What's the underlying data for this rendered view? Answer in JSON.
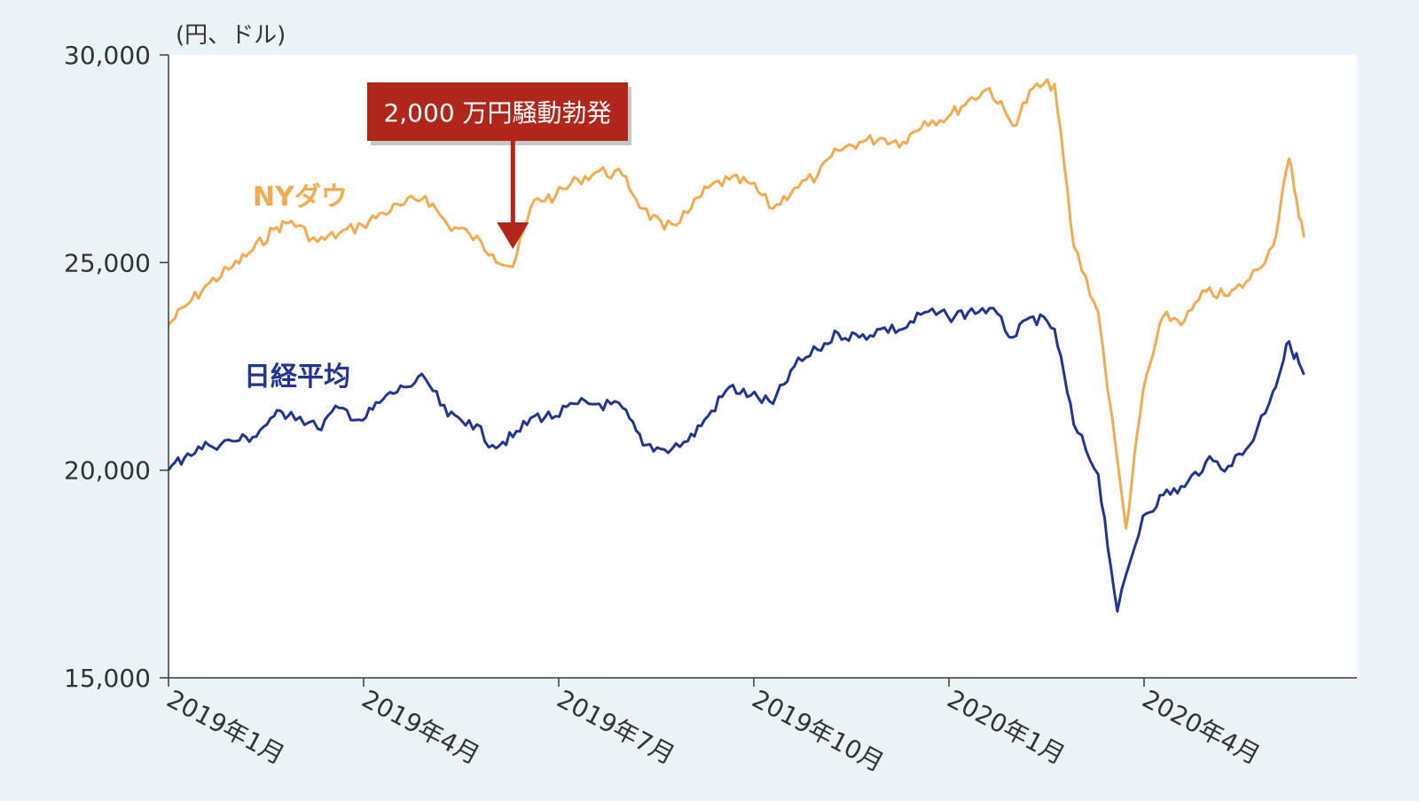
{
  "chart_data": {
    "type": "line",
    "unit_label": "(円、ドル)",
    "y_ticks": [
      "30,000",
      "25,000",
      "20,000",
      "15,000"
    ],
    "ylim": [
      15000,
      30000
    ],
    "x_ticks": [
      "2019年1月",
      "2019年4月",
      "2019年7月",
      "2019年10月",
      "2020年1月",
      "2020年4月"
    ],
    "x_range": [
      "2019-01",
      "2020-06"
    ],
    "grid": false,
    "annotation": {
      "text": "2,000 万円騒動勃発",
      "date": "2019-06-10",
      "value": 24900
    },
    "series": [
      {
        "name": "NYダウ",
        "color": "#f0ab53",
        "points": [
          [
            "2019-01-01",
            23500
          ],
          [
            "2019-01-10",
            24000
          ],
          [
            "2019-01-20",
            24500
          ],
          [
            "2019-01-31",
            24900
          ],
          [
            "2019-02-10",
            25300
          ],
          [
            "2019-02-20",
            25800
          ],
          [
            "2019-02-28",
            26000
          ],
          [
            "2019-03-10",
            25500
          ],
          [
            "2019-03-20",
            25700
          ],
          [
            "2019-03-31",
            25900
          ],
          [
            "2019-04-10",
            26200
          ],
          [
            "2019-04-20",
            26400
          ],
          [
            "2019-04-30",
            26600
          ],
          [
            "2019-05-10",
            25900
          ],
          [
            "2019-05-20",
            25700
          ],
          [
            "2019-05-31",
            25200
          ],
          [
            "2019-06-10",
            24900
          ],
          [
            "2019-06-20",
            26500
          ],
          [
            "2019-06-30",
            26600
          ],
          [
            "2019-07-10",
            27000
          ],
          [
            "2019-07-20",
            27200
          ],
          [
            "2019-07-31",
            27100
          ],
          [
            "2019-08-10",
            26300
          ],
          [
            "2019-08-20",
            25800
          ],
          [
            "2019-08-31",
            26200
          ],
          [
            "2019-09-10",
            26800
          ],
          [
            "2019-09-20",
            27000
          ],
          [
            "2019-09-30",
            26900
          ],
          [
            "2019-10-10",
            26300
          ],
          [
            "2019-10-20",
            26800
          ],
          [
            "2019-10-31",
            27100
          ],
          [
            "2019-11-10",
            27700
          ],
          [
            "2019-11-20",
            27900
          ],
          [
            "2019-11-30",
            28000
          ],
          [
            "2019-12-10",
            27900
          ],
          [
            "2019-12-20",
            28400
          ],
          [
            "2019-12-31",
            28500
          ],
          [
            "2020-01-10",
            28900
          ],
          [
            "2020-01-20",
            29200
          ],
          [
            "2020-01-31",
            28300
          ],
          [
            "2020-02-10",
            29200
          ],
          [
            "2020-02-20",
            29300
          ],
          [
            "2020-02-29",
            25400
          ],
          [
            "2020-03-10",
            23800
          ],
          [
            "2020-03-23",
            18600
          ],
          [
            "2020-03-31",
            21900
          ],
          [
            "2020-04-10",
            23700
          ],
          [
            "2020-04-20",
            23600
          ],
          [
            "2020-04-30",
            24300
          ],
          [
            "2020-05-10",
            24200
          ],
          [
            "2020-05-20",
            24600
          ],
          [
            "2020-05-31",
            25400
          ],
          [
            "2020-06-08",
            27500
          ],
          [
            "2020-06-15",
            25600
          ]
        ]
      },
      {
        "name": "日経平均",
        "color": "#23368f",
        "points": [
          [
            "2019-01-01",
            20000
          ],
          [
            "2019-01-10",
            20400
          ],
          [
            "2019-01-20",
            20600
          ],
          [
            "2019-01-31",
            20700
          ],
          [
            "2019-02-10",
            20800
          ],
          [
            "2019-02-20",
            21300
          ],
          [
            "2019-02-28",
            21400
          ],
          [
            "2019-03-10",
            21000
          ],
          [
            "2019-03-20",
            21500
          ],
          [
            "2019-03-31",
            21200
          ],
          [
            "2019-04-10",
            21700
          ],
          [
            "2019-04-20",
            22000
          ],
          [
            "2019-04-30",
            22200
          ],
          [
            "2019-05-10",
            21300
          ],
          [
            "2019-05-20",
            21200
          ],
          [
            "2019-05-31",
            20600
          ],
          [
            "2019-06-10",
            20800
          ],
          [
            "2019-06-20",
            21300
          ],
          [
            "2019-06-30",
            21300
          ],
          [
            "2019-07-10",
            21600
          ],
          [
            "2019-07-20",
            21600
          ],
          [
            "2019-07-31",
            21500
          ],
          [
            "2019-08-10",
            20600
          ],
          [
            "2019-08-20",
            20500
          ],
          [
            "2019-08-31",
            20700
          ],
          [
            "2019-09-10",
            21300
          ],
          [
            "2019-09-20",
            22000
          ],
          [
            "2019-09-30",
            21800
          ],
          [
            "2019-10-10",
            21600
          ],
          [
            "2019-10-20",
            22500
          ],
          [
            "2019-10-31",
            22900
          ],
          [
            "2019-11-10",
            23300
          ],
          [
            "2019-11-20",
            23200
          ],
          [
            "2019-11-30",
            23400
          ],
          [
            "2019-12-10",
            23400
          ],
          [
            "2019-12-20",
            23800
          ],
          [
            "2019-12-31",
            23700
          ],
          [
            "2020-01-10",
            23800
          ],
          [
            "2020-01-20",
            23900
          ],
          [
            "2020-01-31",
            23200
          ],
          [
            "2020-02-10",
            23700
          ],
          [
            "2020-02-20",
            23400
          ],
          [
            "2020-02-29",
            21100
          ],
          [
            "2020-03-10",
            19900
          ],
          [
            "2020-03-19",
            16600
          ],
          [
            "2020-03-31",
            18900
          ],
          [
            "2020-04-10",
            19400
          ],
          [
            "2020-04-20",
            19600
          ],
          [
            "2020-04-30",
            20200
          ],
          [
            "2020-05-10",
            20100
          ],
          [
            "2020-05-20",
            20600
          ],
          [
            "2020-05-31",
            21900
          ],
          [
            "2020-06-08",
            23100
          ],
          [
            "2020-06-15",
            22300
          ]
        ]
      }
    ]
  }
}
